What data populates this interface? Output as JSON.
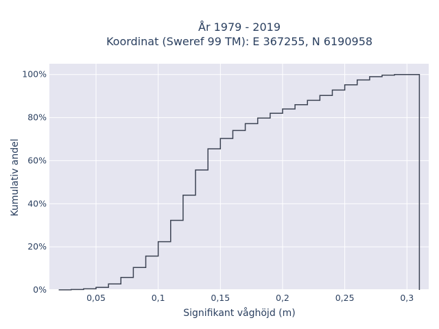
{
  "chart_data": {
    "type": "line",
    "title_line1": "År 1979 - 2019",
    "title_line2": "Koordinat (Sweref 99 TM): E 367255, N 6190958",
    "xlabel": "Signifikant våghöjd (m)",
    "ylabel": "Kumulativ andel",
    "xlim": [
      0.0125,
      0.3175
    ],
    "ylim": [
      0,
      1.05
    ],
    "x_ticks": [
      0.05,
      0.1,
      0.15,
      0.2,
      0.25,
      0.3
    ],
    "x_tick_labels": [
      "0,05",
      "0,1",
      "0,15",
      "0,2",
      "0,25",
      "0,3"
    ],
    "y_ticks": [
      0,
      0.2,
      0.4,
      0.6,
      0.8,
      1.0
    ],
    "y_tick_labels": [
      "0%",
      "20%",
      "40%",
      "60%",
      "80%",
      "100%"
    ],
    "grid": true,
    "step_shape": "hv",
    "step_end_x": 0.31,
    "line_color": "#3b4252",
    "plot_bg": "#e5e5f0",
    "x": [
      0.02,
      0.03,
      0.04,
      0.05,
      0.06,
      0.07,
      0.08,
      0.09,
      0.1,
      0.11,
      0.12,
      0.13,
      0.14,
      0.15,
      0.16,
      0.17,
      0.18,
      0.19,
      0.2,
      0.21,
      0.22,
      0.23,
      0.24,
      0.25,
      0.26,
      0.27,
      0.28,
      0.29,
      0.3
    ],
    "y": [
      0.0005,
      0.002,
      0.005,
      0.012,
      0.028,
      0.058,
      0.104,
      0.157,
      0.224,
      0.323,
      0.44,
      0.557,
      0.655,
      0.703,
      0.74,
      0.772,
      0.798,
      0.82,
      0.84,
      0.86,
      0.88,
      0.903,
      0.928,
      0.952,
      0.975,
      0.99,
      0.997,
      1.0,
      1.0
    ]
  }
}
